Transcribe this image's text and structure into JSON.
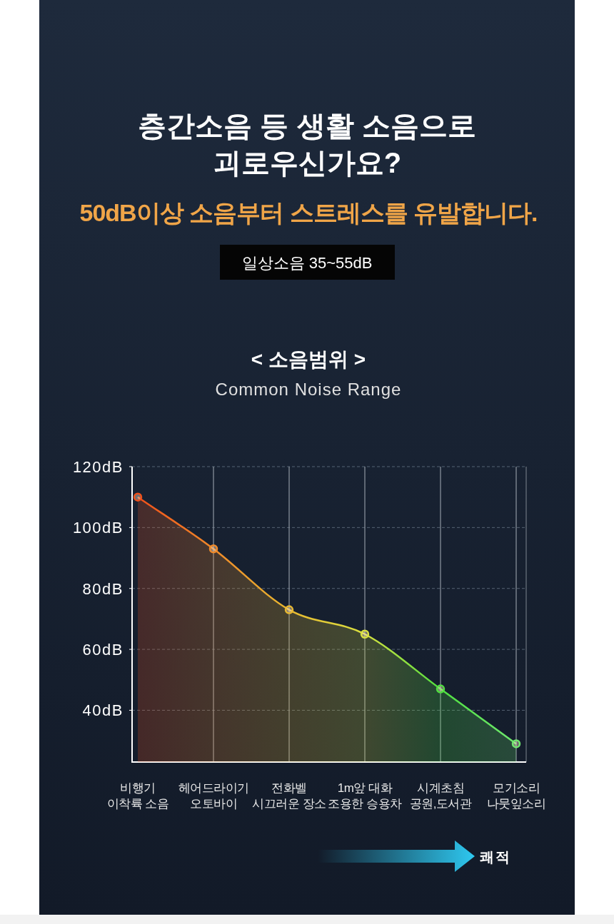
{
  "chart_data": {
    "type": "area",
    "title": "층간소음 등 생활 소음으로\n괴로우신가요?",
    "subtitle": "50dB이상 소음부터 스트레스를 유발합니다.",
    "annotations": [
      "일상소음 35~55dB",
      "< 소음범위 >",
      "Common Noise Range",
      "쾌적"
    ],
    "categories": [
      "비행기\n이착륙 소음",
      "헤어드라이기\n오토바이",
      "전화벨\n시끄러운 장소",
      "1m앞 대화\n조용한 승용차",
      "시계초침\n공원,도서관",
      "모기소리\n나뭇잎소리"
    ],
    "values": [
      110,
      93,
      73,
      65,
      47,
      29
    ],
    "colors": [
      "#f0501a",
      "#f08a2a",
      "#e8b830",
      "#d8e040",
      "#50e040",
      "#70e870"
    ],
    "ylim": [
      23,
      120
    ],
    "yticks": [
      {
        "value": 40,
        "label": "40dB"
      },
      {
        "value": 60,
        "label": "60dB"
      },
      {
        "value": 80,
        "label": "80dB"
      },
      {
        "value": 100,
        "label": "100dB"
      },
      {
        "value": 120,
        "label": "120dB"
      }
    ],
    "grid": true,
    "marker": "circle"
  }
}
